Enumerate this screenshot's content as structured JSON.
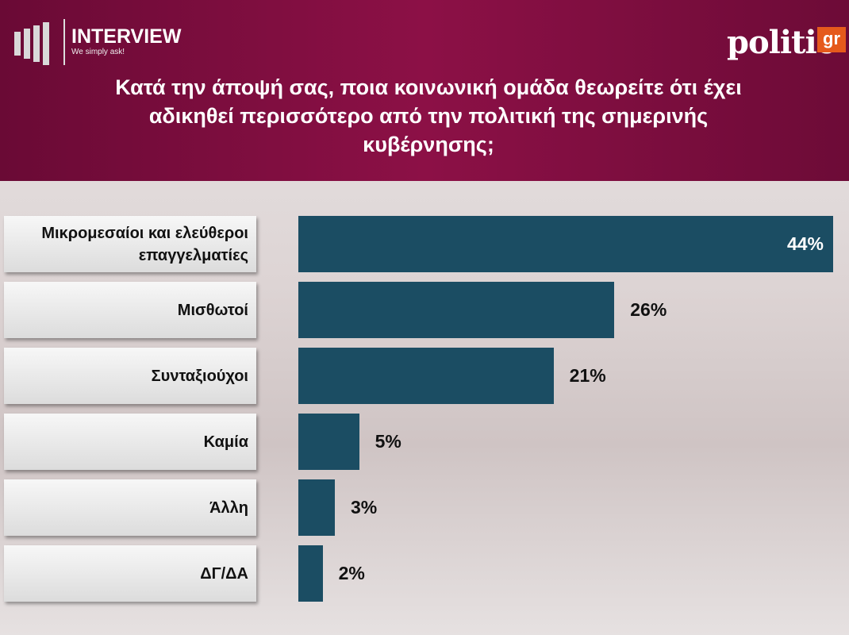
{
  "header": {
    "brand": "INTERVIEW",
    "tagline": "We simply ask!",
    "publisher": "politic",
    "publisher_suffix": "gr"
  },
  "chart_data": {
    "type": "bar",
    "orientation": "horizontal",
    "title": "Κατά την άποψή σας, ποια κοινωνική ομάδα θεωρείτε ότι έχει αδικηθεί περισσότερο από την πολιτική της σημερινής κυβέρνησης;",
    "categories": [
      "Μικρομεσαίοι και ελεύθεροι επαγγελματίες",
      "Μισθωτοί",
      "Συνταξιούχοι",
      "Καμία",
      "Άλλη",
      "ΔΓ/ΔΑ"
    ],
    "values": [
      44,
      26,
      21,
      5,
      3,
      2
    ],
    "value_labels": [
      "44%",
      "26%",
      "21%",
      "5%",
      "3%",
      "2%"
    ],
    "color": "#1b4d63"
  }
}
